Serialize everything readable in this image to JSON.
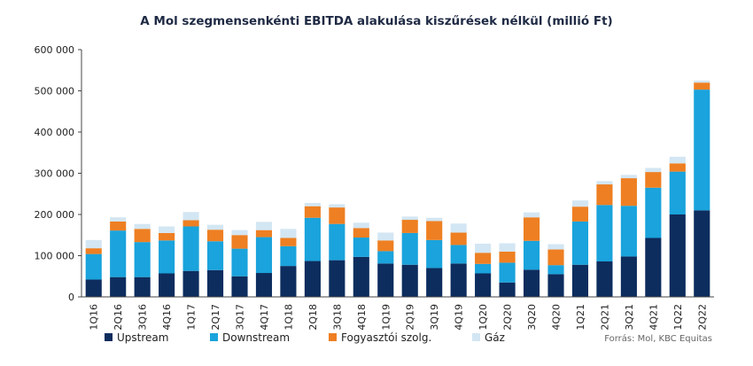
{
  "chart_data": {
    "type": "bar",
    "stacked": true,
    "title": "A Mol szegmensenkénti EBITDA alakulása kiszűrések nélkül  (millió Ft)",
    "xlabel": "",
    "ylabel": "",
    "ylim": [
      0,
      600000
    ],
    "yticks": [
      0,
      100000,
      200000,
      300000,
      400000,
      500000,
      600000
    ],
    "ytick_labels": [
      "0",
      "100 000",
      "200 000",
      "300 000",
      "400 000",
      "500 000",
      "600 000"
    ],
    "grid": false,
    "legend": "bottom-left",
    "categories": [
      "1Q16",
      "2Q16",
      "3Q16",
      "4Q16",
      "1Q17",
      "2Q17",
      "3Q17",
      "4Q17",
      "1Q18",
      "2Q18",
      "3Q18",
      "4Q18",
      "1Q19",
      "2Q19",
      "3Q19",
      "4Q19",
      "1Q20",
      "2Q20",
      "3Q20",
      "4Q20",
      "1Q21",
      "2Q21",
      "3Q21",
      "4Q21",
      "1Q22",
      "2Q22"
    ],
    "series": [
      {
        "name": "Upstream",
        "color": "#0d2d5e",
        "values": [
          42000,
          48000,
          48000,
          57000,
          63000,
          65000,
          50000,
          58000,
          75000,
          87000,
          89000,
          97000,
          81000,
          78000,
          70000,
          81000,
          57000,
          35000,
          66000,
          55000,
          78000,
          86000,
          98000,
          143000,
          200000,
          210000
        ]
      },
      {
        "name": "Downstream",
        "color": "#1aa3dc",
        "values": [
          62000,
          113000,
          85000,
          80000,
          108000,
          70000,
          67000,
          87000,
          48000,
          105000,
          88000,
          47000,
          30000,
          77000,
          68000,
          45000,
          23000,
          48000,
          70000,
          22000,
          105000,
          137000,
          123000,
          122000,
          104000,
          293000
        ]
      },
      {
        "name": "Fogyasztói szolg.",
        "color": "#ee7f22",
        "values": [
          14000,
          22000,
          32000,
          18000,
          15000,
          28000,
          33000,
          17000,
          20000,
          28000,
          40000,
          23000,
          26000,
          32000,
          46000,
          30000,
          27000,
          27000,
          57000,
          38000,
          36000,
          50000,
          67000,
          38000,
          20000,
          17000
        ]
      },
      {
        "name": "Gáz",
        "color": "#d3e6f3",
        "values": [
          20000,
          10000,
          12000,
          16000,
          20000,
          12000,
          12000,
          20000,
          22000,
          8000,
          8000,
          13000,
          19000,
          8000,
          8000,
          22000,
          22000,
          20000,
          12000,
          13000,
          15000,
          8000,
          8000,
          10000,
          16000,
          5000
        ]
      }
    ],
    "source": "Forrás: Mol, KBC Equitas"
  }
}
